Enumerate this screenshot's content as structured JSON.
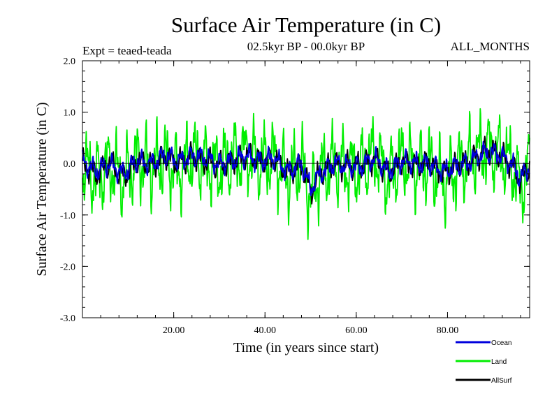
{
  "chart_data": {
    "type": "line",
    "title": "Surface Air Temperature (in C)",
    "subtitle_left": "Expt = teaed-teada",
    "subtitle_center": "02.5kyr BP - 00.0kyr BP",
    "subtitle_right": "ALL_MONTHS",
    "xlabel": "Time (in years since start)",
    "ylabel": "Surface Air Temperature (in C)",
    "xlim": [
      0,
      98
    ],
    "ylim": [
      -3.0,
      2.0
    ],
    "x_ticks": [
      20,
      40,
      60,
      80
    ],
    "x_tick_labels": [
      "20.00",
      "40.00",
      "60.00",
      "80.00"
    ],
    "y_ticks": [
      -3.0,
      -2.0,
      -1.0,
      0.0,
      1.0,
      2.0
    ],
    "y_tick_labels": [
      "-3.0",
      "-2.0",
      "-1.0",
      "0.0",
      "1.0",
      "2.0"
    ],
    "zero_line": true,
    "legend_position": "bottom-right",
    "samples_per_year": 12,
    "series": [
      {
        "name": "Ocean",
        "color": "#0000dd",
        "envelope_amplitude": 0.25,
        "anchors": [
          [
            0,
            0.05
          ],
          [
            3,
            -0.15
          ],
          [
            6,
            0.0
          ],
          [
            9,
            -0.2
          ],
          [
            12,
            0.05
          ],
          [
            15,
            0.0
          ],
          [
            18,
            0.15
          ],
          [
            21,
            0.05
          ],
          [
            24,
            0.15
          ],
          [
            27,
            0.1
          ],
          [
            30,
            0.0
          ],
          [
            33,
            0.05
          ],
          [
            36,
            0.15
          ],
          [
            39,
            0.05
          ],
          [
            42,
            0.1
          ],
          [
            45,
            -0.15
          ],
          [
            48,
            0.0
          ],
          [
            50,
            -0.5
          ],
          [
            52,
            -0.2
          ],
          [
            55,
            0.0
          ],
          [
            58,
            -0.05
          ],
          [
            61,
            -0.05
          ],
          [
            64,
            0.1
          ],
          [
            67,
            -0.15
          ],
          [
            70,
            0.05
          ],
          [
            73,
            0.0
          ],
          [
            76,
            0.0
          ],
          [
            79,
            -0.15
          ],
          [
            82,
            -0.05
          ],
          [
            85,
            0.05
          ],
          [
            88,
            0.2
          ],
          [
            91,
            0.2
          ],
          [
            94,
            0.0
          ],
          [
            96,
            -0.3
          ],
          [
            98,
            -0.05
          ]
        ]
      },
      {
        "name": "Land",
        "color": "#00ee00",
        "envelope_amplitude": 0.9,
        "anchors": [
          [
            0,
            -0.05
          ],
          [
            3,
            -0.3
          ],
          [
            6,
            0.0
          ],
          [
            9,
            -0.35
          ],
          [
            12,
            0.1
          ],
          [
            15,
            -0.1
          ],
          [
            18,
            0.1
          ],
          [
            21,
            -0.2
          ],
          [
            24,
            0.15
          ],
          [
            27,
            0.0
          ],
          [
            30,
            -0.1
          ],
          [
            33,
            0.1
          ],
          [
            36,
            0.2
          ],
          [
            39,
            0.0
          ],
          [
            42,
            0.1
          ],
          [
            45,
            -0.3
          ],
          [
            48,
            0.0
          ],
          [
            50,
            -0.7
          ],
          [
            52,
            -0.2
          ],
          [
            55,
            0.0
          ],
          [
            58,
            -0.1
          ],
          [
            61,
            -0.1
          ],
          [
            64,
            0.2
          ],
          [
            67,
            -0.3
          ],
          [
            70,
            0.1
          ],
          [
            73,
            -0.1
          ],
          [
            76,
            0.0
          ],
          [
            79,
            -0.4
          ],
          [
            82,
            -0.1
          ],
          [
            85,
            0.1
          ],
          [
            88,
            0.3
          ],
          [
            91,
            0.2
          ],
          [
            94,
            0.0
          ],
          [
            96,
            -0.5
          ],
          [
            98,
            0.0
          ]
        ]
      },
      {
        "name": "AllSurf",
        "color": "#000000",
        "envelope_amplitude": 0.3,
        "anchors": [
          [
            0,
            0.0
          ],
          [
            3,
            -0.2
          ],
          [
            6,
            0.0
          ],
          [
            9,
            -0.25
          ],
          [
            12,
            0.05
          ],
          [
            15,
            -0.05
          ],
          [
            18,
            0.15
          ],
          [
            21,
            0.0
          ],
          [
            24,
            0.15
          ],
          [
            27,
            0.05
          ],
          [
            30,
            -0.05
          ],
          [
            33,
            0.05
          ],
          [
            36,
            0.15
          ],
          [
            39,
            0.05
          ],
          [
            42,
            0.1
          ],
          [
            45,
            -0.2
          ],
          [
            48,
            0.0
          ],
          [
            50,
            -0.55
          ],
          [
            52,
            -0.2
          ],
          [
            55,
            0.0
          ],
          [
            58,
            -0.05
          ],
          [
            61,
            -0.05
          ],
          [
            64,
            0.1
          ],
          [
            67,
            -0.2
          ],
          [
            70,
            0.05
          ],
          [
            73,
            -0.05
          ],
          [
            76,
            0.0
          ],
          [
            79,
            -0.2
          ],
          [
            82,
            -0.05
          ],
          [
            85,
            0.05
          ],
          [
            88,
            0.25
          ],
          [
            91,
            0.2
          ],
          [
            94,
            0.0
          ],
          [
            96,
            -0.35
          ],
          [
            98,
            -0.05
          ]
        ]
      }
    ]
  }
}
